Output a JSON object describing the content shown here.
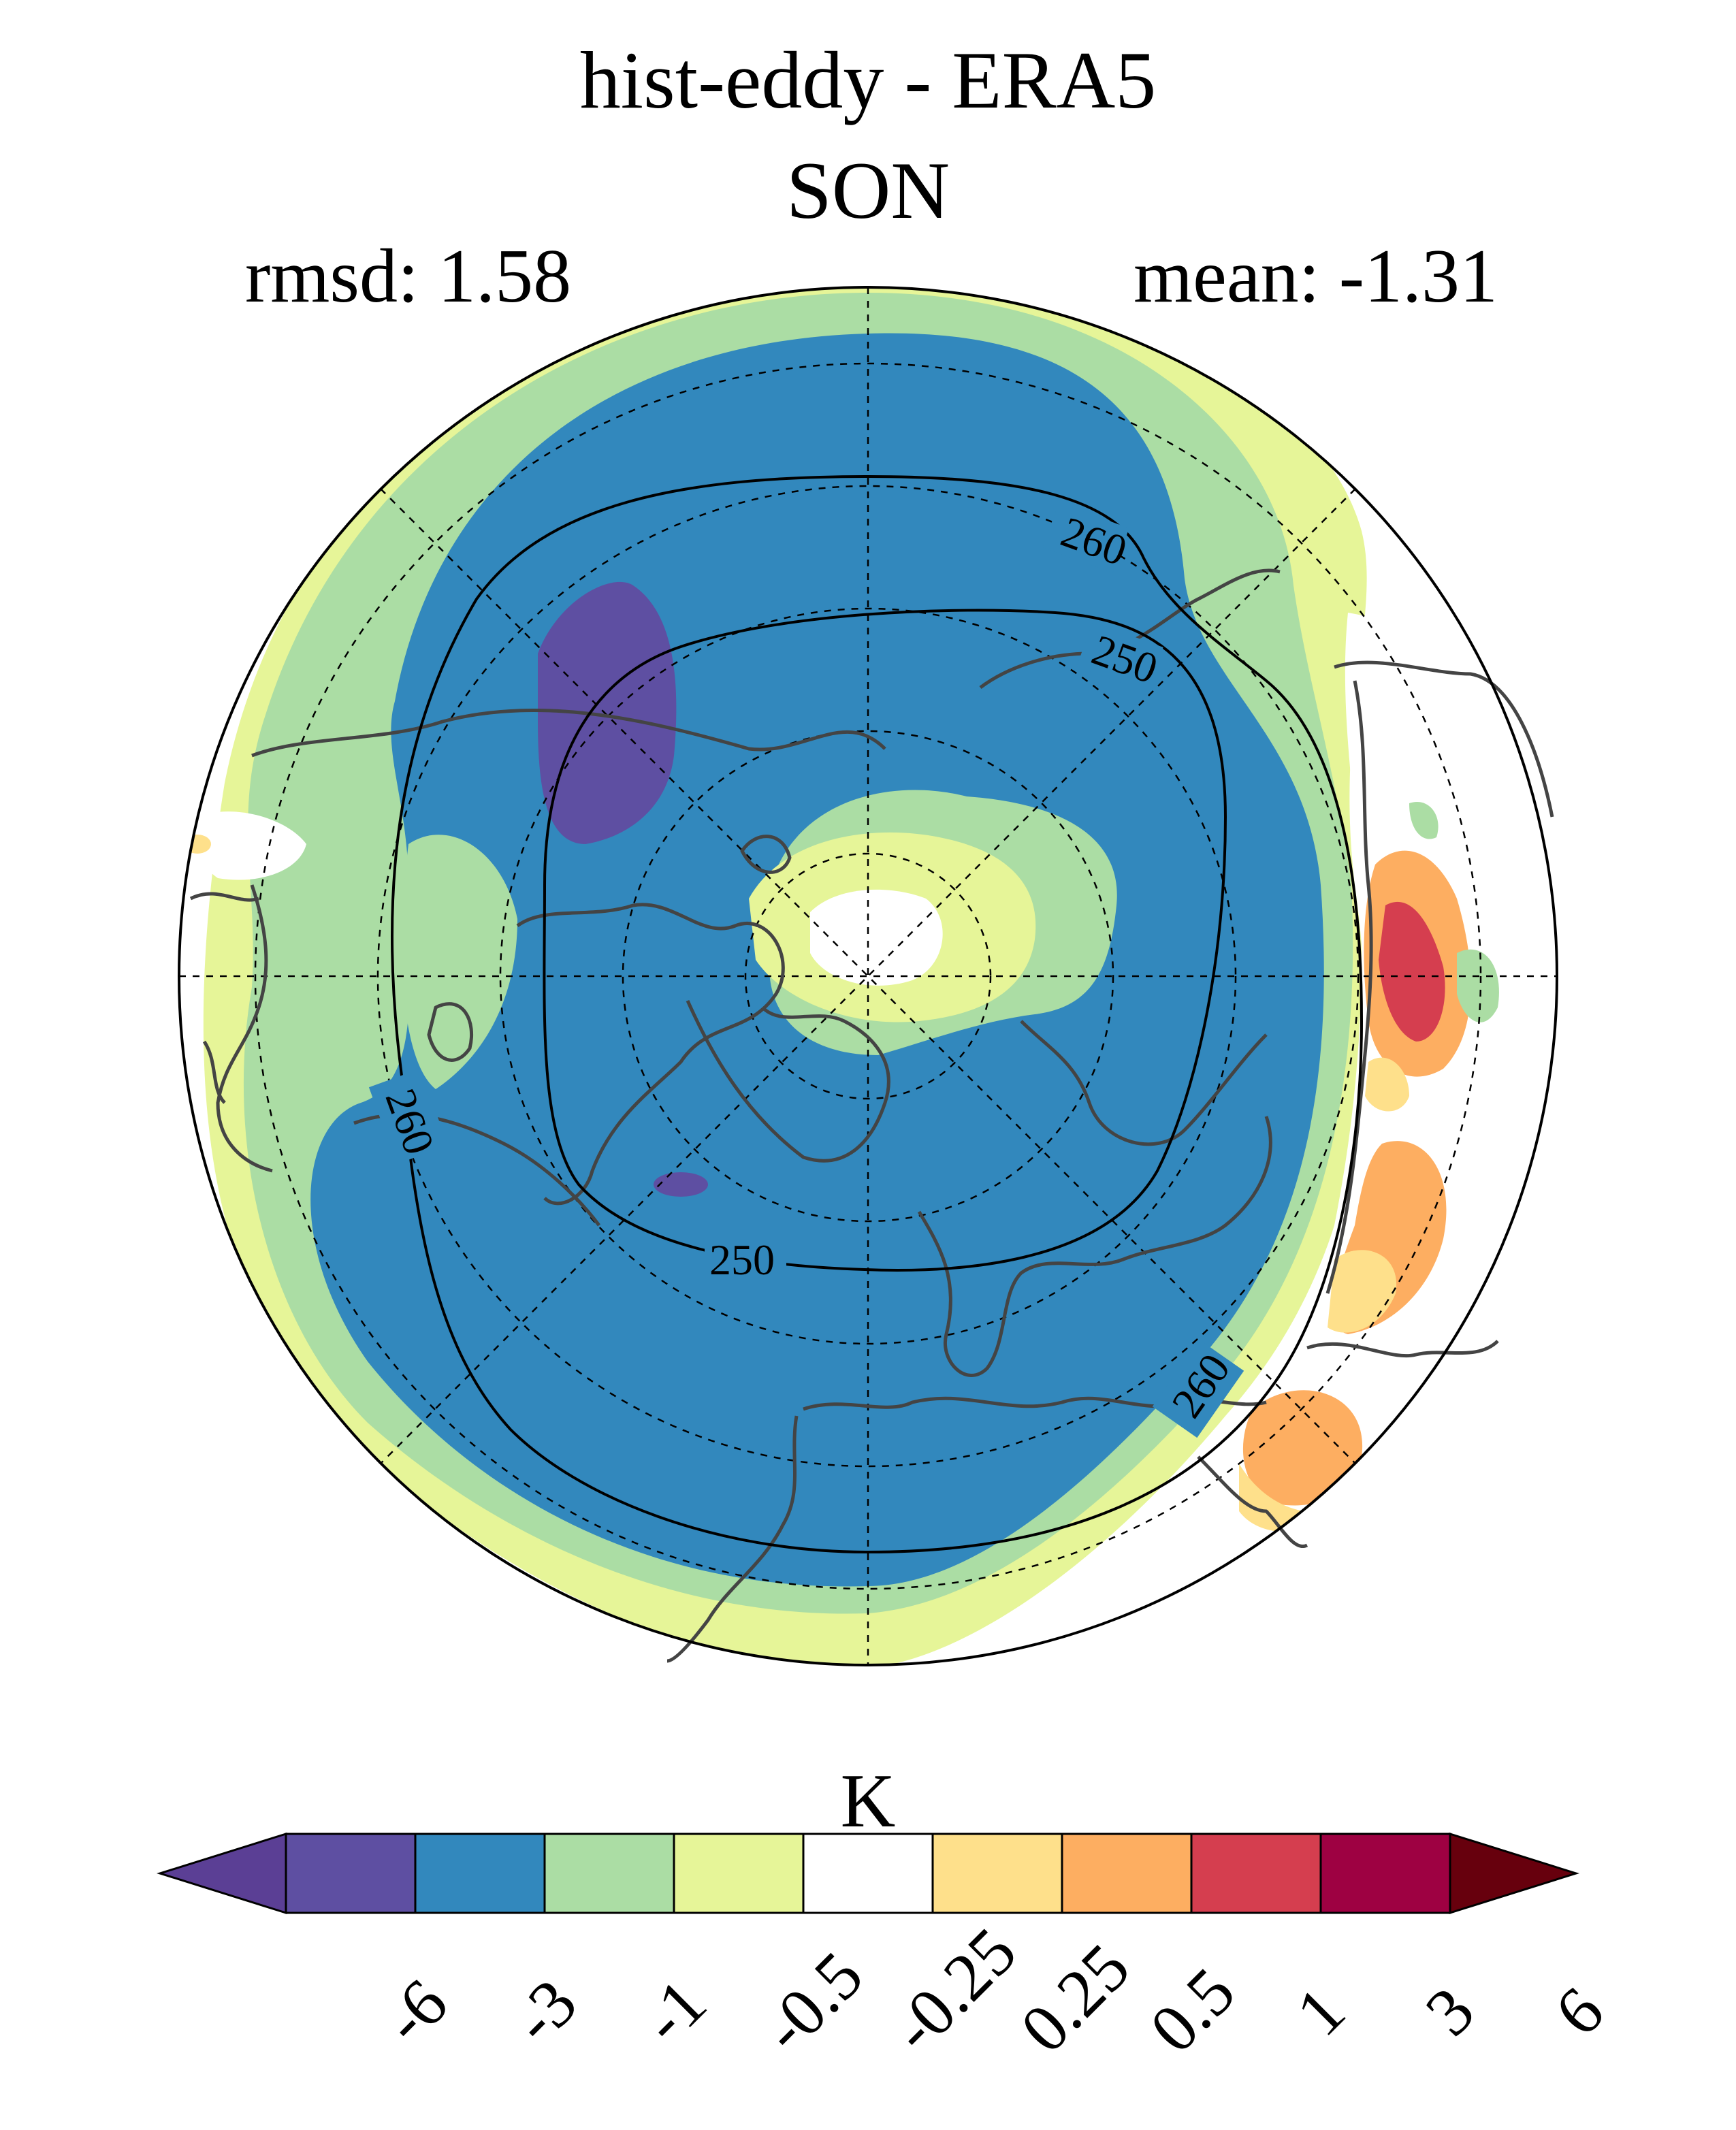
{
  "titles": {
    "main": "hist-eddy - ERA5",
    "season": "SON",
    "rmsd": "rmsd: 1.58",
    "mean": "mean: -1.31"
  },
  "map": {
    "projection": "north-polar-stereographic",
    "contour_labels": [
      "260",
      "250",
      "250",
      "260",
      "260"
    ]
  },
  "colorbar": {
    "unit": "K",
    "tick_labels": [
      "-6",
      "-3",
      "-1",
      "-0.5",
      "-0.25",
      "0.25",
      "0.5",
      "1",
      "3",
      "6"
    ],
    "colors": [
      "#5b3f95",
      "#5e4fa2",
      "#3288bd",
      "#abdda4",
      "#e6f598",
      "#ffffff",
      "#fee08b",
      "#fdae61",
      "#d53e4f",
      "#9e0142",
      "#67000d"
    ]
  }
}
